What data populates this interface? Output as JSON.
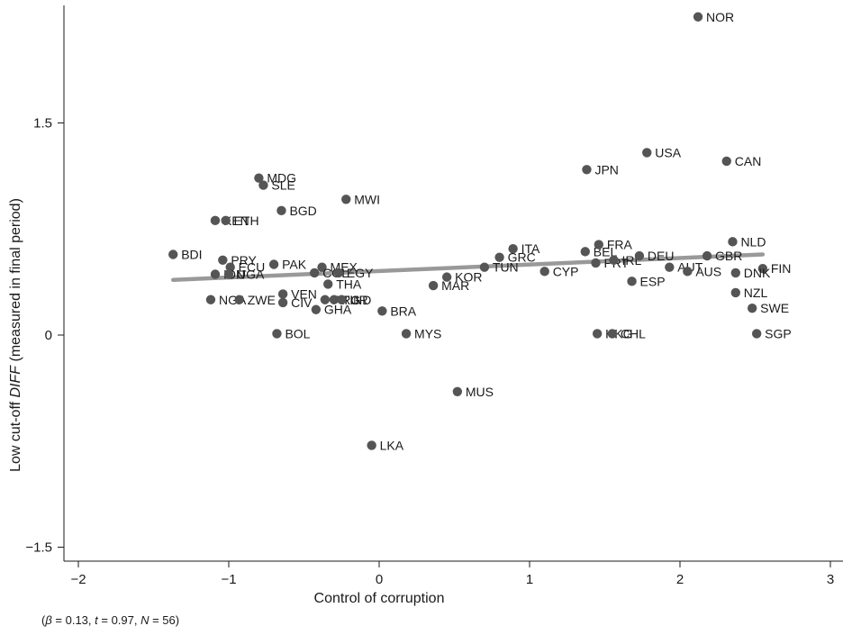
{
  "chart_data": {
    "type": "scatter",
    "xlabel": "Control of corruption",
    "ylabel_prefix": "Low cut-off ",
    "ylabel_italic": "DIFF",
    "ylabel_suffix": " (measured in final period)",
    "xlim": [
      -2.1,
      3.05
    ],
    "ylim": [
      -1.6,
      2.35
    ],
    "xticks": [
      -2,
      -1,
      0,
      1,
      2,
      3
    ],
    "xtick_labels": [
      "−2",
      "−1",
      "0",
      "1",
      "2",
      "3"
    ],
    "yticks": [
      -1.5,
      0,
      1.5
    ],
    "ytick_labels": [
      "−1.5",
      "0",
      "1.5"
    ],
    "grid": false,
    "marker_color": "#555555",
    "fit_color": "#999999",
    "fit_line": {
      "x": [
        -1.37,
        2.55
      ],
      "y": [
        0.39,
        0.57
      ]
    },
    "points": [
      {
        "label": "NOR",
        "x": 2.12,
        "y": 2.25
      },
      {
        "label": "USA",
        "x": 1.78,
        "y": 1.29
      },
      {
        "label": "CAN",
        "x": 2.31,
        "y": 1.23
      },
      {
        "label": "JPN",
        "x": 1.38,
        "y": 1.17
      },
      {
        "label": "MDG",
        "x": -0.8,
        "y": 1.11
      },
      {
        "label": "SLE",
        "x": -0.77,
        "y": 1.06
      },
      {
        "label": "MWI",
        "x": -0.22,
        "y": 0.96
      },
      {
        "label": "BGD",
        "x": -0.65,
        "y": 0.88
      },
      {
        "label": "KEN",
        "x": -1.09,
        "y": 0.81
      },
      {
        "label": "ETH",
        "x": -1.02,
        "y": 0.81
      },
      {
        "label": "BDI",
        "x": -1.37,
        "y": 0.57
      },
      {
        "label": "PRY",
        "x": -1.04,
        "y": 0.53
      },
      {
        "label": "PAK",
        "x": -0.7,
        "y": 0.5
      },
      {
        "label": "ECU",
        "x": -0.99,
        "y": 0.48
      },
      {
        "label": "MEX",
        "x": -0.38,
        "y": 0.48
      },
      {
        "label": "IDN",
        "x": -1.09,
        "y": 0.43
      },
      {
        "label": "UGA",
        "x": -1.0,
        "y": 0.43
      },
      {
        "label": "COL",
        "x": -0.43,
        "y": 0.44
      },
      {
        "label": "EGY",
        "x": -0.27,
        "y": 0.44
      },
      {
        "label": "NGA",
        "x": -1.12,
        "y": 0.25
      },
      {
        "label": "ZWE",
        "x": -0.93,
        "y": 0.25
      },
      {
        "label": "VEN",
        "x": -0.64,
        "y": 0.29
      },
      {
        "label": "CIV",
        "x": -0.64,
        "y": 0.23
      },
      {
        "label": "THA",
        "x": -0.34,
        "y": 0.36
      },
      {
        "label": "ARG",
        "x": -0.36,
        "y": 0.25
      },
      {
        "label": "TUR",
        "x": -0.3,
        "y": 0.25
      },
      {
        "label": "IND",
        "x": -0.25,
        "y": 0.25
      },
      {
        "label": "GHA",
        "x": -0.42,
        "y": 0.18
      },
      {
        "label": "BRA",
        "x": 0.02,
        "y": 0.17
      },
      {
        "label": "BOL",
        "x": -0.68,
        "y": 0.01
      },
      {
        "label": "MYS",
        "x": 0.18,
        "y": 0.01
      },
      {
        "label": "ITA",
        "x": 0.89,
        "y": 0.61
      },
      {
        "label": "GRC",
        "x": 0.8,
        "y": 0.55
      },
      {
        "label": "TUN",
        "x": 0.7,
        "y": 0.48
      },
      {
        "label": "KOR",
        "x": 0.45,
        "y": 0.41
      },
      {
        "label": "MAR",
        "x": 0.36,
        "y": 0.35
      },
      {
        "label": "CYP",
        "x": 1.1,
        "y": 0.45
      },
      {
        "label": "BEL",
        "x": 1.37,
        "y": 0.59
      },
      {
        "label": "FRA",
        "x": 1.46,
        "y": 0.64
      },
      {
        "label": "PRT",
        "x": 1.44,
        "y": 0.51
      },
      {
        "label": "IRL",
        "x": 1.56,
        "y": 0.53
      },
      {
        "label": "DEU",
        "x": 1.73,
        "y": 0.56
      },
      {
        "label": "ESP",
        "x": 1.68,
        "y": 0.38
      },
      {
        "label": "AUT",
        "x": 1.93,
        "y": 0.48
      },
      {
        "label": "AUS",
        "x": 2.05,
        "y": 0.45
      },
      {
        "label": "GBR",
        "x": 2.18,
        "y": 0.56
      },
      {
        "label": "NLD",
        "x": 2.35,
        "y": 0.66
      },
      {
        "label": "FIN",
        "x": 2.55,
        "y": 0.47
      },
      {
        "label": "DNK",
        "x": 2.37,
        "y": 0.44
      },
      {
        "label": "NZL",
        "x": 2.37,
        "y": 0.3
      },
      {
        "label": "SWE",
        "x": 2.48,
        "y": 0.19
      },
      {
        "label": "SGP",
        "x": 2.51,
        "y": 0.01
      },
      {
        "label": "HKG",
        "x": 1.45,
        "y": 0.01
      },
      {
        "label": "CHL",
        "x": 1.55,
        "y": 0.01
      },
      {
        "label": "MUS",
        "x": 0.52,
        "y": -0.4
      },
      {
        "label": "LKA",
        "x": -0.05,
        "y": -0.78
      }
    ]
  },
  "footnote": {
    "open": "(",
    "beta_symbol": "β",
    "beta_value": " = 0.13, ",
    "t_symbol": "t",
    "t_value": " = 0.97, ",
    "n_symbol": "N",
    "n_value": " = 56)"
  }
}
